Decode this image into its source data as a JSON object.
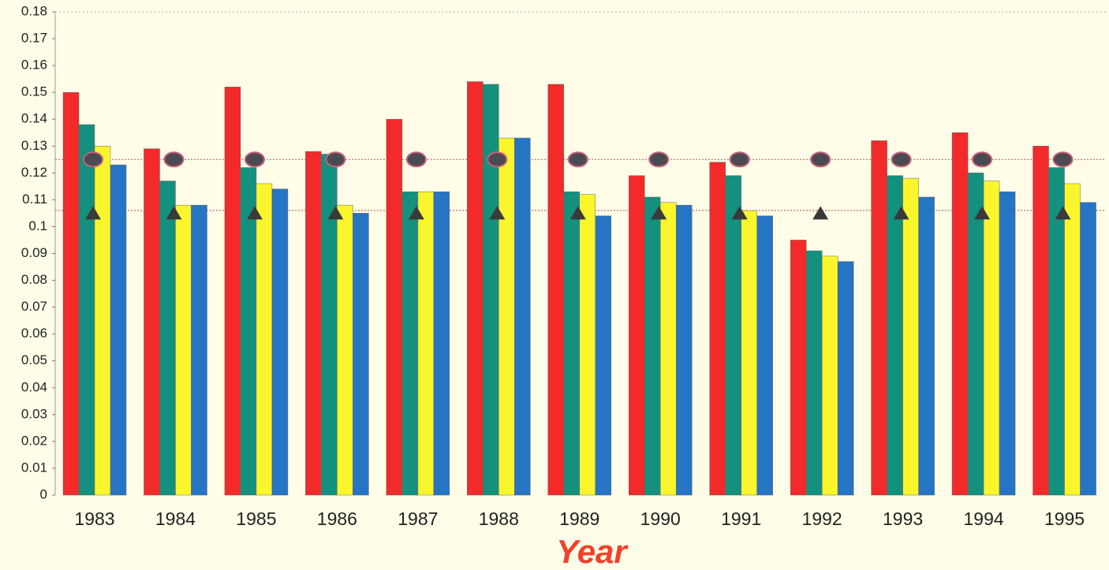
{
  "chart_data": {
    "type": "bar",
    "x_label": "Year",
    "categories": [
      "1983",
      "1984",
      "1985",
      "1986",
      "1987",
      "1988",
      "1989",
      "1990",
      "1991",
      "1992",
      "1993",
      "1994",
      "1995"
    ],
    "series": [
      {
        "color": "#f22a2a",
        "values": [
          0.15,
          0.129,
          0.152,
          0.128,
          0.14,
          0.154,
          0.153,
          0.119,
          0.124,
          0.095,
          0.132,
          0.135,
          0.13
        ]
      },
      {
        "color": "#14907e",
        "values": [
          0.138,
          0.117,
          0.122,
          0.127,
          0.113,
          0.153,
          0.113,
          0.111,
          0.119,
          0.091,
          0.119,
          0.12,
          0.122
        ]
      },
      {
        "color": "#fbf52e",
        "values": [
          0.13,
          0.108,
          0.116,
          0.108,
          0.113,
          0.133,
          0.112,
          0.109,
          0.106,
          0.089,
          0.118,
          0.117,
          0.116
        ]
      },
      {
        "color": "#2674c4",
        "values": [
          0.123,
          0.108,
          0.114,
          0.105,
          0.113,
          0.133,
          0.104,
          0.108,
          0.104,
          0.087,
          0.111,
          0.113,
          0.109
        ]
      }
    ],
    "markers": [
      {
        "shape": "ellipse",
        "color": "#4a4a52",
        "values": [
          0.125,
          0.125,
          0.125,
          0.125,
          0.125,
          0.125,
          0.125,
          0.125,
          0.125,
          0.125,
          0.125,
          0.125,
          0.125
        ]
      },
      {
        "shape": "triangle",
        "color": "#3a3a3a",
        "values": [
          0.105,
          0.105,
          0.105,
          0.105,
          0.105,
          0.105,
          0.105,
          0.105,
          0.105,
          0.105,
          0.105,
          0.105,
          0.105
        ]
      }
    ],
    "hlines": [
      0.125,
      0.106
    ],
    "hline_color": "#c86a6a",
    "ylim": [
      0,
      0.18
    ],
    "yticks": [
      0,
      0.01,
      0.02,
      0.03,
      0.04,
      0.05,
      0.06,
      0.07,
      0.08,
      0.09,
      0.1,
      0.11,
      0.12,
      0.13,
      0.14,
      0.15,
      0.16,
      0.17,
      0.18
    ]
  }
}
